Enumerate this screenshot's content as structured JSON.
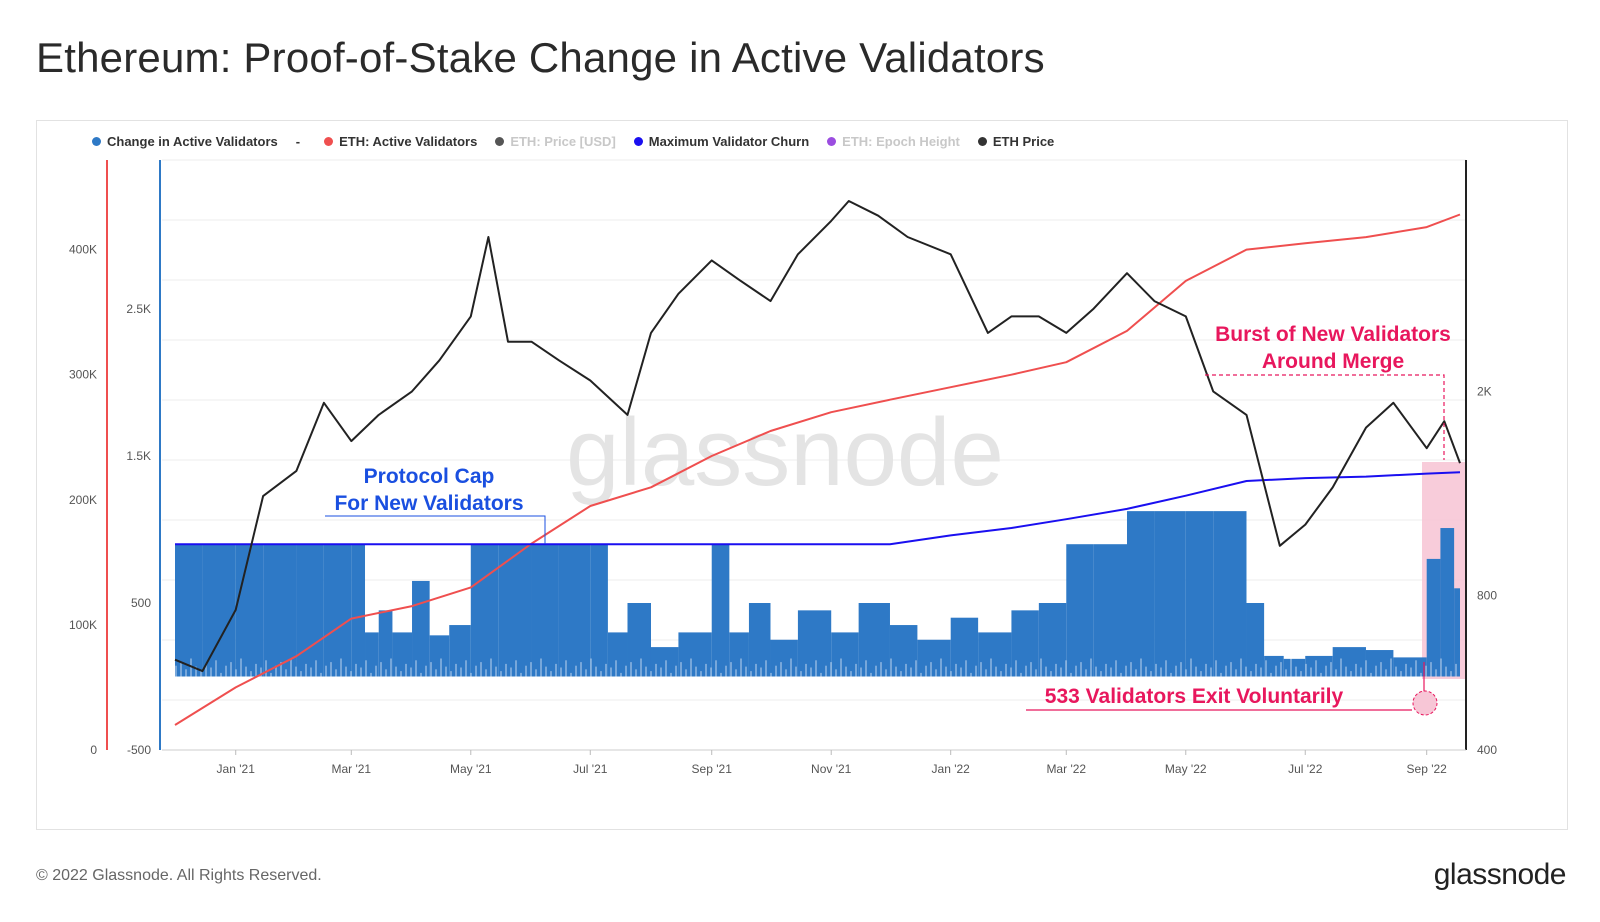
{
  "page": {
    "title": "Ethereum: Proof-of-Stake Change in Active Validators",
    "footer": "© 2022 Glassnode. All Rights Reserved.",
    "brand": "glassnode",
    "watermark": "glassnode"
  },
  "legend": [
    {
      "label": "Change in Active Validators",
      "color": "#2e79c6",
      "muted": false
    },
    {
      "label": "-",
      "color": "",
      "muted": false,
      "separator": true
    },
    {
      "label": "ETH: Active Validators",
      "color": "#ef4f4f",
      "muted": false
    },
    {
      "label": "ETH: Price [USD]",
      "color": "#555555",
      "muted": true
    },
    {
      "label": "Maximum Validator Churn",
      "color": "#1a0ff0",
      "muted": false
    },
    {
      "label": "ETH: Epoch Height",
      "color": "#9b4de0",
      "muted": true
    },
    {
      "label": "ETH Price",
      "color": "#333333",
      "muted": false
    }
  ],
  "annotations": {
    "protocol_cap_line1": "Protocol Cap",
    "protocol_cap_line2": "For New Validators",
    "burst_line1": "Burst of New Validators",
    "burst_line2": "Around Merge",
    "exit": "533 Validators Exit Voluntarily"
  },
  "colors": {
    "bars": "#2e79c6",
    "active_validators": "#ef4f4f",
    "churn": "#1a0ff0",
    "price": "#222222",
    "annot_blue": "#1a4fe0",
    "annot_pink": "#e8175d",
    "highlight": "#f7c6d6"
  },
  "chart_data": {
    "type": "bar",
    "x_ticks": [
      "Jan '21",
      "Mar '21",
      "May '21",
      "Jul '21",
      "Sep '21",
      "Nov '21",
      "Jan '22",
      "Mar '22",
      "May '22",
      "Jul '22",
      "Sep '22"
    ],
    "x_range": [
      "2020-12-01",
      "2022-09-18"
    ],
    "axes": {
      "active_validators": {
        "ticks": [
          "0",
          "100K",
          "200K",
          "300K",
          "400K"
        ],
        "values": [
          0,
          100000,
          200000,
          300000,
          400000
        ],
        "range": [
          0,
          470000
        ]
      },
      "change_in_active_validators": {
        "ticks": [
          "-500",
          "500",
          "1.5K",
          "2.5K"
        ],
        "values": [
          -500,
          500,
          1500,
          2500
        ],
        "range": [
          -500,
          3500
        ]
      },
      "eth_price": {
        "ticks": [
          "400",
          "800",
          "2K"
        ],
        "values": [
          400,
          800,
          2000
        ],
        "range": [
          400,
          5600
        ]
      }
    },
    "series": [
      {
        "name": "Change in Active Validators",
        "type": "bar",
        "x": [
          "2020-12-01",
          "2020-12-15",
          "2021-01-01",
          "2021-01-15",
          "2021-02-01",
          "2021-02-15",
          "2021-03-01",
          "2021-03-08",
          "2021-03-15",
          "2021-03-22",
          "2021-04-01",
          "2021-04-10",
          "2021-04-20",
          "2021-05-01",
          "2021-05-15",
          "2021-06-01",
          "2021-06-15",
          "2021-07-01",
          "2021-07-10",
          "2021-07-20",
          "2021-08-01",
          "2021-08-15",
          "2021-09-01",
          "2021-09-10",
          "2021-09-20",
          "2021-10-01",
          "2021-10-15",
          "2021-11-01",
          "2021-11-15",
          "2021-12-01",
          "2021-12-15",
          "2022-01-01",
          "2022-01-15",
          "2022-02-01",
          "2022-02-15",
          "2022-03-01",
          "2022-03-15",
          "2022-04-01",
          "2022-04-15",
          "2022-05-01",
          "2022-05-15",
          "2022-06-01",
          "2022-06-10",
          "2022-06-20",
          "2022-07-01",
          "2022-07-15",
          "2022-08-01",
          "2022-08-15",
          "2022-09-01",
          "2022-09-08",
          "2022-09-15"
        ],
        "values": [
          900,
          900,
          900,
          900,
          900,
          900,
          900,
          300,
          450,
          300,
          650,
          280,
          350,
          900,
          900,
          900,
          900,
          900,
          300,
          500,
          200,
          300,
          900,
          300,
          500,
          250,
          450,
          300,
          500,
          350,
          250,
          400,
          300,
          450,
          500,
          900,
          900,
          1125,
          1125,
          1125,
          1125,
          500,
          140,
          120,
          140,
          200,
          180,
          130,
          800,
          1010,
          600
        ]
      },
      {
        "name": "ETH: Active Validators",
        "type": "line",
        "x": [
          "2020-12-01",
          "2021-01-01",
          "2021-02-01",
          "2021-03-01",
          "2021-04-01",
          "2021-05-01",
          "2021-06-01",
          "2021-07-01",
          "2021-08-01",
          "2021-09-01",
          "2021-10-01",
          "2021-11-01",
          "2021-12-01",
          "2022-01-01",
          "2022-02-01",
          "2022-03-01",
          "2022-04-01",
          "2022-05-01",
          "2022-06-01",
          "2022-07-01",
          "2022-08-01",
          "2022-09-01",
          "2022-09-18"
        ],
        "values": [
          20000,
          50000,
          75000,
          105000,
          115000,
          130000,
          165000,
          195000,
          210000,
          235000,
          255000,
          270000,
          280000,
          290000,
          300000,
          310000,
          335000,
          375000,
          400000,
          405000,
          410000,
          418000,
          428000
        ]
      },
      {
        "name": "Maximum Validator Churn",
        "type": "line",
        "x": [
          "2020-12-01",
          "2021-12-01",
          "2022-01-01",
          "2022-02-01",
          "2022-03-01",
          "2022-04-01",
          "2022-05-01",
          "2022-06-01",
          "2022-07-01",
          "2022-08-01",
          "2022-09-01",
          "2022-09-18"
        ],
        "values": [
          900,
          900,
          960,
          1010,
          1070,
          1140,
          1230,
          1330,
          1350,
          1360,
          1380,
          1390
        ]
      },
      {
        "name": "ETH Price",
        "type": "line",
        "x": [
          "2020-12-01",
          "2020-12-15",
          "2021-01-01",
          "2021-01-15",
          "2021-02-01",
          "2021-02-15",
          "2021-03-01",
          "2021-03-15",
          "2021-04-01",
          "2021-04-15",
          "2021-05-01",
          "2021-05-10",
          "2021-05-20",
          "2021-06-01",
          "2021-06-15",
          "2021-07-01",
          "2021-07-20",
          "2021-08-01",
          "2021-08-15",
          "2021-09-01",
          "2021-09-15",
          "2021-10-01",
          "2021-10-15",
          "2021-11-01",
          "2021-11-10",
          "2021-11-25",
          "2021-12-10",
          "2022-01-01",
          "2022-01-20",
          "2022-02-01",
          "2022-02-15",
          "2022-03-01",
          "2022-03-15",
          "2022-04-01",
          "2022-04-15",
          "2022-05-01",
          "2022-05-15",
          "2022-06-01",
          "2022-06-18",
          "2022-07-01",
          "2022-07-15",
          "2022-08-01",
          "2022-08-15",
          "2022-09-01",
          "2022-09-10",
          "2022-09-18"
        ],
        "values": [
          600,
          570,
          750,
          1250,
          1400,
          1900,
          1600,
          1800,
          2000,
          2300,
          2800,
          4000,
          2500,
          2500,
          2300,
          2100,
          1800,
          2600,
          3100,
          3600,
          3300,
          3000,
          3700,
          4300,
          4700,
          4400,
          4000,
          3700,
          2600,
          2800,
          2800,
          2600,
          2900,
          3400,
          3000,
          2800,
          2000,
          1800,
          1000,
          1100,
          1300,
          1700,
          1900,
          1550,
          1750,
          1450
        ]
      }
    ]
  }
}
